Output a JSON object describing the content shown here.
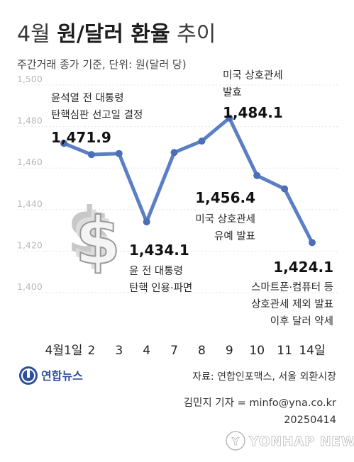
{
  "chart_data": {
    "type": "line",
    "title_light_1": "4월 ",
    "title_bold": "원/달러 환율",
    "title_light_2": " 추이",
    "subtitle": "주간거래 종가 기준, 단위: 원(달러 당)",
    "categories": [
      "4월1일",
      "2",
      "3",
      "4",
      "7",
      "8",
      "9",
      "10",
      "11",
      "14일"
    ],
    "values": [
      1471.9,
      1466.5,
      1467.0,
      1434.1,
      1467.5,
      1473.0,
      1484.1,
      1456.4,
      1450.0,
      1424.1
    ],
    "ylim": [
      1400,
      1500
    ],
    "yticks": [
      "1,400",
      "1,420",
      "1,440",
      "1,460",
      "1,480",
      "1,500"
    ],
    "grid": true,
    "annotations": [
      {
        "index": 0,
        "lines": [
          "윤석열 전 대통령",
          "탄핵심판 선고일 결정"
        ],
        "value_label": "1,471.9"
      },
      {
        "index": 3,
        "lines": [
          "윤 전 대통령",
          "탄핵 인용·파면"
        ],
        "value_label": "1,434.1"
      },
      {
        "index": 6,
        "lines": [
          "미국 상호관세",
          "발효"
        ],
        "value_label": "1,484.1"
      },
      {
        "index": 7,
        "lines": [
          "미국 상호관세",
          "유예 발표"
        ],
        "value_label": "1,456.4"
      },
      {
        "index": 9,
        "lines": [
          "스마트폰·컴퓨터 등",
          "상호관세 제외 발표",
          "이후 달러 약세"
        ],
        "value_label": "1,424.1"
      }
    ],
    "line_color": "#5b7fc4"
  },
  "footer": {
    "brand": "연합뉴스",
    "source": "자료: 연합인포맥스, 서울 외환시장",
    "credit": "김민지 기자 = minfo@yna.co.kr",
    "date": "20250414",
    "watermark": "YONHAP NEWS"
  },
  "icons": {
    "dollar": "dollar-sign-icon",
    "logo": "yonhap-logo-icon"
  }
}
